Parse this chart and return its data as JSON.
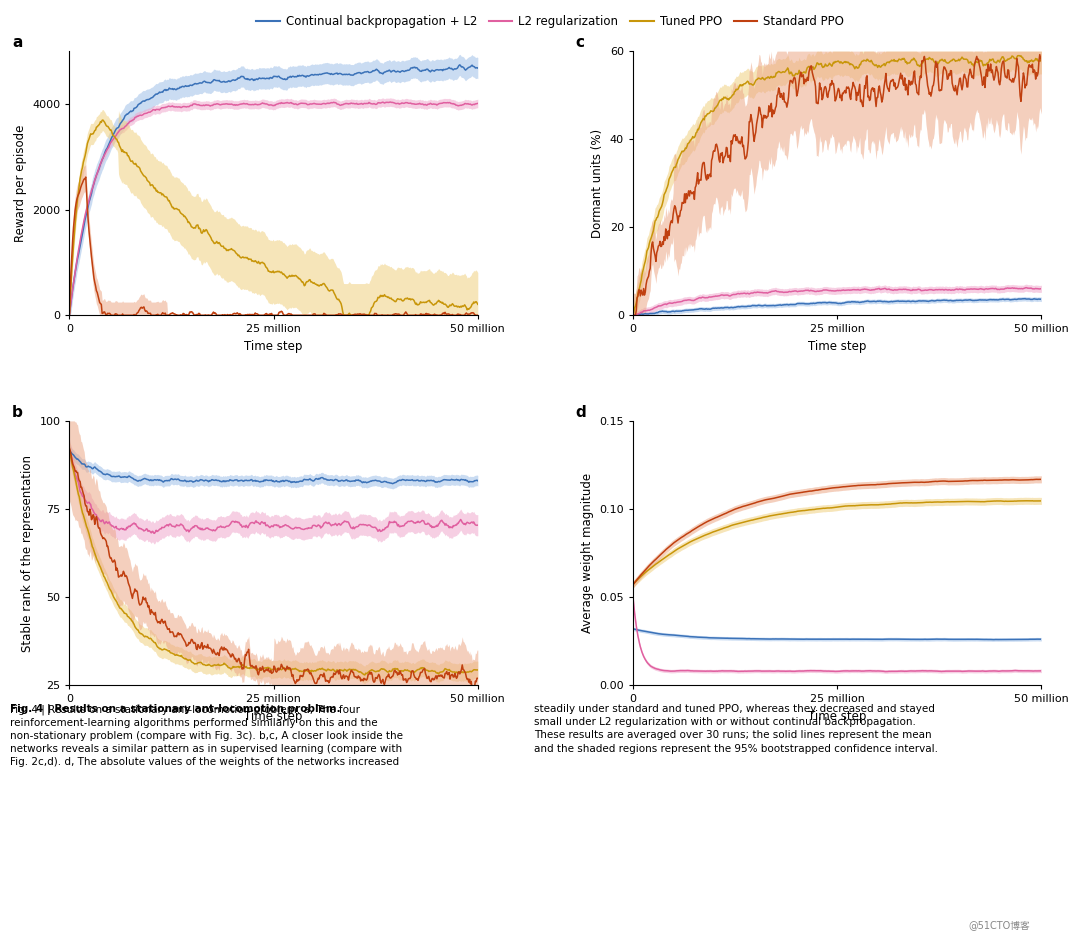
{
  "legend_labels": [
    "Continual backpropagation + L2",
    "L2 regularization",
    "Tuned PPO",
    "Standard PPO"
  ],
  "c_blue": "#3B72B8",
  "c_pink": "#E060A0",
  "c_olight": "#C8960A",
  "c_odark": "#C04010",
  "cf_blue": "#A0C0E8",
  "cf_pink": "#F0A8CC",
  "cf_olight": "#F0D080",
  "cf_odark": "#ECA888",
  "panel_a": {
    "ylabel": "Reward per episode",
    "xlabel": "Time step",
    "xticks": [
      0,
      25000000,
      50000000
    ],
    "xticklabels": [
      "0",
      "25 million",
      "50 million"
    ],
    "ylim": [
      0,
      5000
    ],
    "yticks": [
      0,
      2000,
      4000
    ],
    "xlim": [
      0,
      50000000
    ],
    "label": "a"
  },
  "panel_b": {
    "ylabel": "Stable rank of the representation",
    "xlabel": "Time step",
    "xticks": [
      0,
      25000000,
      50000000
    ],
    "xticklabels": [
      "0",
      "25 million",
      "50 million"
    ],
    "ylim": [
      25,
      100
    ],
    "yticks": [
      25,
      50,
      75,
      100
    ],
    "xlim": [
      0,
      50000000
    ],
    "label": "b"
  },
  "panel_c": {
    "ylabel": "Dormant units (%)",
    "xlabel": "Time step",
    "xticks": [
      0,
      25000000,
      50000000
    ],
    "xticklabels": [
      "0",
      "25 million",
      "50 million"
    ],
    "ylim": [
      0,
      60
    ],
    "yticks": [
      0,
      20,
      40,
      60
    ],
    "xlim": [
      0,
      50000000
    ],
    "label": "c"
  },
  "panel_d": {
    "ylabel": "Average weight magnitude",
    "xlabel": "Time step",
    "xticks": [
      0,
      25000000,
      50000000
    ],
    "xticklabels": [
      "0",
      "25 million",
      "50 million"
    ],
    "ylim": [
      0,
      0.15
    ],
    "yticks": [
      0.0,
      0.05,
      0.1,
      0.15
    ],
    "xlim": [
      0,
      50000000
    ],
    "label": "d"
  },
  "caption_bold": "Fig. 4 | Results on a stationary ant-locomotion problem.",
  "caption_a": " a,",
  "caption_left_rest": " The four\nreinforcement-learning algorithms performed similarly on this and the\nnon-stationary problem (compare with Fig. 3c). ",
  "caption_bc": "b,c,",
  "caption_mid": " A closer look inside the\nnetworks reveals a similar pattern as in supervised learning (compare with\nFig. 2c,d). ",
  "caption_d": "d,",
  "caption_end": " The absolute values of the weights of the networks increased",
  "caption_right": "steadily under standard and tuned PPO, whereas they decreased and stayed\nsmall under L2 regularization with or without continual backpropagation.\nThese results are averaged over 30 runs; the solid lines represent the mean\nand the shaded regions represent the 95% bootstrapped confidence interval.",
  "watermark": "@51CTO博客"
}
